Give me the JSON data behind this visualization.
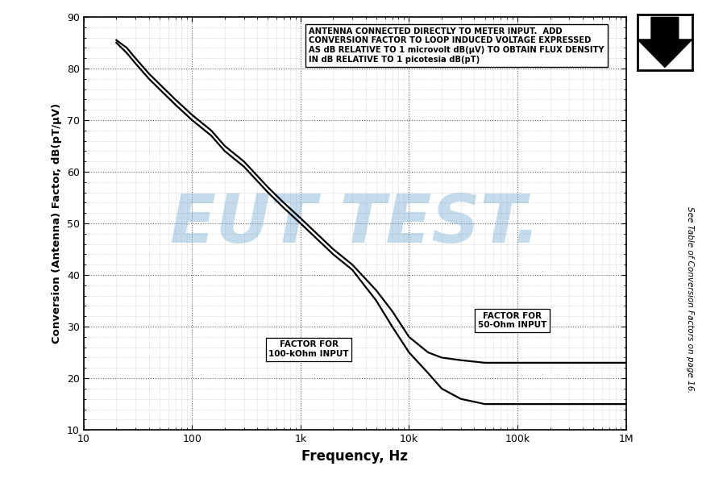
{
  "xlabel": "Frequency, Hz",
  "ylabel": "Conversion (Antenna) Factor, dB(pT/μV)",
  "xlim": [
    10,
    1000000
  ],
  "ylim": [
    10,
    90
  ],
  "yticks": [
    10,
    20,
    30,
    40,
    50,
    60,
    70,
    80,
    90
  ],
  "xtick_labels": [
    "10",
    "100",
    "1k",
    "10k",
    "100k",
    "1M"
  ],
  "xtick_values": [
    10,
    100,
    1000,
    10000,
    100000,
    1000000
  ],
  "line_color": "#000000",
  "annotation_box_text": "ANTENNA CONNECTED DIRECTLY TO METER INPUT.  ADD\nCONVERSION FACTOR TO LOOP INDUCED VOLTAGE EXPRESSED\nAS dB RELATIVE TO 1 microvolt dB(μV) TO OBTAIN FLUX DENSITY\nIN dB RELATIVE TO 1 picotesia dB(pT)",
  "label_100k": "FACTOR FOR\n100-kOhm INPUT",
  "label_50": "FACTOR FOR\n50-Ohm INPUT",
  "watermark_text": "EUT TEST.",
  "watermark_color": "#7ab0d4",
  "watermark_alpha": 0.45,
  "side_text": "See Table of Conversion Factors on page 16.",
  "curve_100kohm_freq": [
    20,
    25,
    30,
    40,
    50,
    70,
    100,
    150,
    200,
    300,
    500,
    700,
    1000,
    2000,
    3000,
    5000,
    7000,
    10000,
    15000,
    20000,
    30000,
    50000,
    70000,
    100000,
    200000,
    500000,
    1000000
  ],
  "curve_100kohm_val": [
    85,
    83,
    81,
    78,
    76,
    73,
    70,
    67,
    64,
    61,
    56,
    53,
    50,
    44,
    41,
    35,
    30,
    25,
    21,
    18,
    16,
    15,
    15,
    15,
    15,
    15,
    15
  ],
  "curve_50ohm_freq": [
    20,
    25,
    30,
    40,
    50,
    70,
    100,
    150,
    200,
    300,
    500,
    700,
    1000,
    2000,
    3000,
    5000,
    7000,
    10000,
    15000,
    20000,
    30000,
    50000,
    70000,
    100000,
    200000,
    500000,
    1000000
  ],
  "curve_50ohm_val": [
    85.5,
    84,
    82,
    79,
    77,
    74,
    71,
    68,
    65,
    62,
    57,
    54,
    51,
    45,
    42,
    37,
    33,
    28,
    25,
    24,
    23.5,
    23,
    23,
    23,
    23,
    23,
    23
  ],
  "background_color": "#ffffff",
  "grid_color": "#808080"
}
